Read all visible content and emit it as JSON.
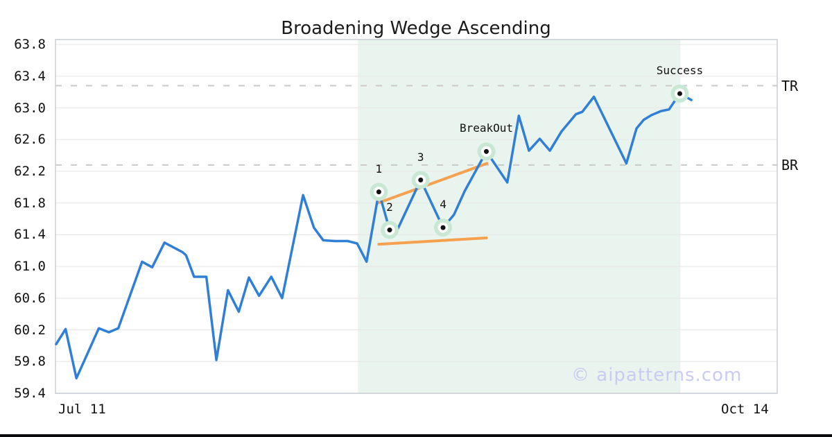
{
  "chart_data": {
    "type": "line",
    "title": "Broadening Wedge Ascending",
    "watermark": "© aipatterns.com",
    "legend": "none",
    "grid": "horizontal",
    "x_axis": {
      "tick_labels": [
        "Jul 11",
        "Oct 14"
      ],
      "note_x_unit": "x values of points are fractions 0-1 across the date axis from Jul 11 to Oct 14"
    },
    "y_axis": {
      "min": 59.4,
      "max": 63.8,
      "tick_step": 0.4,
      "tick_labels": [
        "63.8",
        "63.4",
        "63.0",
        "62.6",
        "62.2",
        "61.8",
        "61.4",
        "61.0",
        "60.6",
        "60.2",
        "59.8",
        "59.4"
      ]
    },
    "series": [
      {
        "name": "price",
        "points": [
          [
            0.001,
            60.02
          ],
          [
            0.014,
            60.21
          ],
          [
            0.029,
            59.59
          ],
          [
            0.06,
            60.22
          ],
          [
            0.074,
            60.17
          ],
          [
            0.087,
            60.22
          ],
          [
            0.12,
            61.06
          ],
          [
            0.134,
            60.99
          ],
          [
            0.151,
            61.3
          ],
          [
            0.176,
            61.18
          ],
          [
            0.181,
            61.14
          ],
          [
            0.192,
            60.87
          ],
          [
            0.209,
            60.87
          ],
          [
            0.223,
            59.82
          ],
          [
            0.239,
            60.7
          ],
          [
            0.254,
            60.43
          ],
          [
            0.268,
            60.86
          ],
          [
            0.282,
            60.63
          ],
          [
            0.299,
            60.87
          ],
          [
            0.314,
            60.6
          ],
          [
            0.343,
            61.9
          ],
          [
            0.358,
            61.49
          ],
          [
            0.371,
            61.33
          ],
          [
            0.387,
            61.32
          ],
          [
            0.405,
            61.32
          ],
          [
            0.418,
            61.29
          ],
          [
            0.431,
            61.06
          ],
          [
            0.448,
            61.94
          ],
          [
            0.463,
            61.46
          ],
          [
            0.471,
            61.41
          ],
          [
            0.506,
            62.09
          ],
          [
            0.537,
            61.49
          ],
          [
            0.552,
            61.65
          ],
          [
            0.567,
            61.95
          ],
          [
            0.597,
            62.45
          ],
          [
            0.626,
            62.06
          ],
          [
            0.642,
            62.9
          ],
          [
            0.656,
            62.46
          ],
          [
            0.671,
            62.61
          ],
          [
            0.685,
            62.46
          ],
          [
            0.701,
            62.7
          ],
          [
            0.721,
            62.92
          ],
          [
            0.73,
            62.95
          ],
          [
            0.746,
            63.14
          ],
          [
            0.791,
            62.3
          ],
          [
            0.805,
            62.74
          ],
          [
            0.815,
            62.85
          ],
          [
            0.826,
            62.91
          ],
          [
            0.839,
            62.96
          ],
          [
            0.85,
            62.98
          ],
          [
            0.865,
            63.18
          ],
          [
            0.881,
            63.1
          ]
        ]
      }
    ],
    "pattern_points": [
      {
        "label": "1",
        "x": 0.448,
        "price": 61.94
      },
      {
        "label": "2",
        "x": 0.463,
        "price": 61.46
      },
      {
        "label": "3",
        "x": 0.506,
        "price": 62.09
      },
      {
        "label": "4",
        "x": 0.537,
        "price": 61.49
      },
      {
        "label": "BreakOut",
        "x": 0.597,
        "price": 62.45
      },
      {
        "label": "Success",
        "x": 0.865,
        "price": 63.18
      }
    ],
    "levels": [
      {
        "label": "TR",
        "price": 63.28
      },
      {
        "label": "BR",
        "price": 62.28
      }
    ],
    "trendlines": [
      {
        "name": "upper",
        "from": [
          0.447,
          61.8
        ],
        "to": [
          0.598,
          62.3
        ]
      },
      {
        "name": "lower",
        "from": [
          0.448,
          61.28
        ],
        "to": [
          0.597,
          61.36
        ]
      }
    ],
    "pattern_zone": {
      "x_start": 0.419,
      "x_end": 0.866
    }
  },
  "colors": {
    "line_blue": "#2f7ed8",
    "trendline_orange": "#f7a04e",
    "marker_halo_green": "#c8e8d4",
    "marker_ring": "#ffffff",
    "marker_dot": "#111111",
    "zone_mint": "#eaf4ef",
    "grid_gray": "#e8e8e8",
    "dashed_gray": "#c9c9c9",
    "plot_border": "#c8cdd2",
    "title_text": "#1b1b1b",
    "watermark_lavender": "#c9cbf3",
    "footer_bar": "#0b0b0d"
  }
}
